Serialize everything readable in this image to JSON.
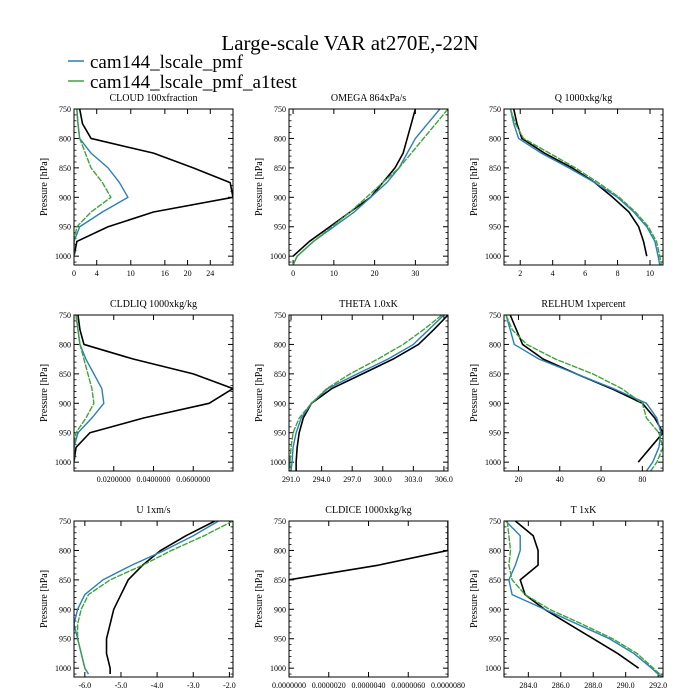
{
  "title": "Large-scale VAR at270E,-22N",
  "legend": [
    {
      "label": "cam144_lscale_pmf",
      "color": "#2a7fb8"
    },
    {
      "label": "cam144_lscale_pmf_a1test",
      "color": "#3fa33a"
    }
  ],
  "series_colors": [
    "#000000",
    "#2a7fb8",
    "#3fa33a"
  ],
  "chart_data": [
    {
      "type": "line",
      "title": "CLOUD  100xfraction",
      "ylabel": "Pressure [hPa]",
      "xlim": [
        0,
        28
      ],
      "ylim": [
        750,
        1015
      ],
      "xticks": [
        "0",
        "4",
        "10",
        "16",
        "20",
        "24"
      ],
      "xtick_values": [
        0,
        4,
        10,
        16,
        20,
        24
      ],
      "yticks": [
        "750",
        "800",
        "850",
        "900",
        "950",
        "1000"
      ],
      "levels": [
        750,
        775,
        800,
        825,
        850,
        875,
        900,
        925,
        950,
        975,
        1000
      ],
      "series": [
        {
          "values": [
            1,
            1.5,
            3,
            14,
            21,
            27.5,
            28,
            14,
            6,
            0.5,
            0
          ]
        },
        {
          "values": [
            0.5,
            0.7,
            1,
            3,
            6,
            8,
            9.5,
            5,
            1,
            0,
            0
          ]
        },
        {
          "values": [
            0.5,
            0.7,
            1,
            2,
            3,
            5,
            6.5,
            3,
            0.5,
            0,
            0
          ]
        }
      ]
    },
    {
      "type": "line",
      "title": "OMEGA  864xPa/s",
      "ylabel": "Pressure [hPa]",
      "xlim": [
        -1,
        38
      ],
      "ylim": [
        750,
        1015
      ],
      "xticks": [
        "0",
        "10",
        "20",
        "30"
      ],
      "xtick_values": [
        0,
        10,
        20,
        30
      ],
      "yticks": [
        "750",
        "800",
        "850",
        "900",
        "950",
        "1000"
      ],
      "levels": [
        750,
        775,
        800,
        825,
        850,
        875,
        900,
        925,
        950,
        975,
        1000,
        1015
      ],
      "series": [
        {
          "values": [
            30,
            29,
            28,
            27,
            25,
            22,
            19,
            14,
            9,
            4,
            0,
            null
          ]
        },
        {
          "values": [
            36,
            33,
            30,
            28,
            26,
            23,
            19,
            15,
            10,
            5,
            1,
            0
          ]
        },
        {
          "values": [
            38,
            35,
            32,
            29,
            26,
            22,
            18,
            14,
            9.5,
            5,
            1,
            0
          ]
        }
      ]
    },
    {
      "type": "line",
      "title": "Q  1000xkg/kg",
      "ylabel": "Pressure [hPa]",
      "xlim": [
        1,
        10.8
      ],
      "ylim": [
        750,
        1015
      ],
      "xticks": [
        "2",
        "4",
        "6",
        "8",
        "10"
      ],
      "xtick_values": [
        2,
        4,
        6,
        8,
        10
      ],
      "yticks": [
        "750",
        "800",
        "850",
        "900",
        "950",
        "1000"
      ],
      "levels": [
        750,
        775,
        800,
        825,
        850,
        875,
        900,
        925,
        950,
        975,
        1000,
        1015
      ],
      "series": [
        {
          "values": [
            1.6,
            1.8,
            2.1,
            3.5,
            5.2,
            6.6,
            7.7,
            8.7,
            9.3,
            9.6,
            9.8,
            null
          ]
        },
        {
          "values": [
            1.4,
            1.6,
            1.9,
            3.3,
            5.0,
            6.6,
            8.0,
            9.0,
            9.8,
            10.3,
            10.5,
            10.6
          ]
        },
        {
          "values": [
            1.4,
            1.7,
            2.2,
            3.8,
            5.4,
            6.8,
            8.1,
            9.1,
            9.9,
            10.4,
            10.6,
            10.7
          ]
        }
      ]
    },
    {
      "type": "line",
      "title": "CLDLIQ  1000xkg/kg",
      "ylabel": "Pressure [hPa]",
      "xlim": [
        0,
        0.08
      ],
      "ylim": [
        750,
        1015
      ],
      "xticks": [
        "0.0200000",
        "0.0400000",
        "0.0600000"
      ],
      "xtick_values": [
        0.02,
        0.04,
        0.06
      ],
      "yticks": [
        "750",
        "800",
        "850",
        "900",
        "950",
        "1000"
      ],
      "levels": [
        750,
        775,
        800,
        825,
        850,
        875,
        900,
        925,
        950,
        975,
        1000
      ],
      "series": [
        {
          "values": [
            0.002,
            0.003,
            0.005,
            0.03,
            0.06,
            0.08,
            0.068,
            0.035,
            0.008,
            0.001,
            0
          ]
        },
        {
          "values": [
            0.001,
            0.002,
            0.003,
            0.006,
            0.01,
            0.014,
            0.015,
            0.009,
            0.002,
            0,
            0
          ]
        },
        {
          "values": [
            0.001,
            0.002,
            0.003,
            0.005,
            0.007,
            0.009,
            0.01,
            0.006,
            0.001,
            0,
            0
          ]
        }
      ]
    },
    {
      "type": "line",
      "title": "THETA  1.0xK",
      "ylabel": "Pressure [hPa]",
      "xlim": [
        290.8,
        306.4
      ],
      "ylim": [
        750,
        1015
      ],
      "xticks": [
        "291.0",
        "294.0",
        "297.0",
        "300.0",
        "303.0",
        "306.0"
      ],
      "xtick_values": [
        291,
        294,
        297,
        300,
        303,
        306
      ],
      "yticks": [
        "750",
        "800",
        "850",
        "900",
        "950",
        "1000"
      ],
      "levels": [
        750,
        775,
        800,
        825,
        850,
        875,
        900,
        925,
        950,
        975,
        1000,
        1015
      ],
      "series": [
        {
          "values": [
            306.4,
            305.0,
            303.5,
            301.0,
            298.0,
            295.0,
            293.0,
            292.2,
            291.8,
            291.6,
            291.5,
            291.5
          ]
        },
        {
          "values": [
            306.0,
            304.5,
            303.0,
            300.5,
            297.5,
            294.6,
            293.0,
            292.0,
            291.5,
            291.2,
            291.1,
            291.0
          ]
        },
        {
          "values": [
            305.8,
            304.0,
            302.0,
            299.5,
            296.8,
            294.5,
            293.0,
            291.8,
            291.2,
            291.0,
            290.9,
            290.9
          ]
        }
      ]
    },
    {
      "type": "line",
      "title": "RELHUM  1xpercent",
      "ylabel": "Pressure [hPa]",
      "xlim": [
        13,
        90
      ],
      "ylim": [
        750,
        1015
      ],
      "xticks": [
        "20",
        "40",
        "60",
        "80"
      ],
      "xtick_values": [
        20,
        40,
        60,
        80
      ],
      "yticks": [
        "750",
        "800",
        "850",
        "900",
        "950",
        "1000"
      ],
      "levels": [
        750,
        775,
        800,
        825,
        850,
        875,
        900,
        925,
        950,
        975,
        1000,
        1015
      ],
      "series": [
        {
          "values": [
            16,
            19,
            22,
            32,
            48,
            65,
            80,
            86,
            90,
            84,
            78,
            null
          ]
        },
        {
          "values": [
            14,
            16,
            18,
            30,
            48,
            66,
            82,
            87,
            89,
            88,
            85,
            82
          ]
        },
        {
          "values": [
            14,
            17,
            24,
            38,
            56,
            70,
            80,
            82,
            88,
            90,
            87,
            84
          ]
        }
      ]
    },
    {
      "type": "line",
      "title": "U  1xm/s",
      "ylabel": "Pressure [hPa]",
      "xlim": [
        -6.3,
        -1.9
      ],
      "ylim": [
        750,
        1015
      ],
      "xticks": [
        "-6.0",
        "-5.0",
        "-4.0",
        "-3.0",
        "-2.0"
      ],
      "xtick_values": [
        -6,
        -5,
        -4,
        -3,
        -2
      ],
      "yticks": [
        "750",
        "800",
        "850",
        "900",
        "950",
        "1000"
      ],
      "levels": [
        750,
        775,
        800,
        825,
        850,
        875,
        900,
        925,
        950,
        975,
        1000,
        1010
      ],
      "series": [
        {
          "values": [
            -2.4,
            -3.2,
            -3.9,
            -4.4,
            -4.8,
            -5.0,
            -5.2,
            -5.3,
            -5.4,
            -5.4,
            -5.3,
            -5.3
          ]
        },
        {
          "values": [
            -2.3,
            -3.0,
            -3.8,
            -4.7,
            -5.5,
            -6.0,
            -6.2,
            -6.3,
            -6.2,
            -6.1,
            -6.0,
            -5.9
          ]
        },
        {
          "values": [
            -1.9,
            -2.7,
            -3.6,
            -4.4,
            -5.3,
            -5.9,
            -6.1,
            -6.2,
            -6.2,
            -6.1,
            -6.0,
            -5.9
          ]
        }
      ]
    },
    {
      "type": "line",
      "title": "CLDICE  1000xkg/kg",
      "ylabel": "Pressure [hPa]",
      "xlim": [
        0,
        8e-06
      ],
      "ylim": [
        750,
        1015
      ],
      "xticks": [
        "0.0000000",
        "0.0000020",
        "0.0000040",
        "0.0000060",
        "0.0000080"
      ],
      "xtick_values": [
        0,
        2e-06,
        4e-06,
        6e-06,
        8e-06
      ],
      "yticks": [
        "750",
        "800",
        "850",
        "900",
        "950",
        "1000"
      ],
      "levels": [
        750,
        800,
        825,
        850
      ],
      "series": [
        {
          "values": [
            8e-06,
            8e-06,
            4.5e-06,
            0
          ]
        }
      ]
    },
    {
      "type": "line",
      "title": "T  1xK",
      "ylabel": "Pressure [hPa]",
      "xlim": [
        282.5,
        292.3
      ],
      "ylim": [
        750,
        1015
      ],
      "xticks": [
        "284.0",
        "286.0",
        "288.0",
        "290.0",
        "292.0"
      ],
      "xtick_values": [
        284,
        286,
        288,
        290,
        292
      ],
      "yticks": [
        "750",
        "800",
        "850",
        "900",
        "950",
        "1000"
      ],
      "levels": [
        750,
        775,
        800,
        825,
        850,
        875,
        900,
        925,
        950,
        975,
        1000,
        1015
      ],
      "series": [
        {
          "values": [
            283.2,
            284.3,
            284.6,
            284.6,
            283.5,
            283.8,
            285.0,
            286.5,
            288.0,
            289.5,
            290.8,
            null
          ]
        },
        {
          "values": [
            282.6,
            283.5,
            283.5,
            283.2,
            282.8,
            283.0,
            285.0,
            287.0,
            289.0,
            290.5,
            291.6,
            292.2
          ]
        },
        {
          "values": [
            282.7,
            282.8,
            282.9,
            282.8,
            283.0,
            283.8,
            285.3,
            287.3,
            289.2,
            290.7,
            291.7,
            292.3
          ]
        }
      ]
    }
  ]
}
